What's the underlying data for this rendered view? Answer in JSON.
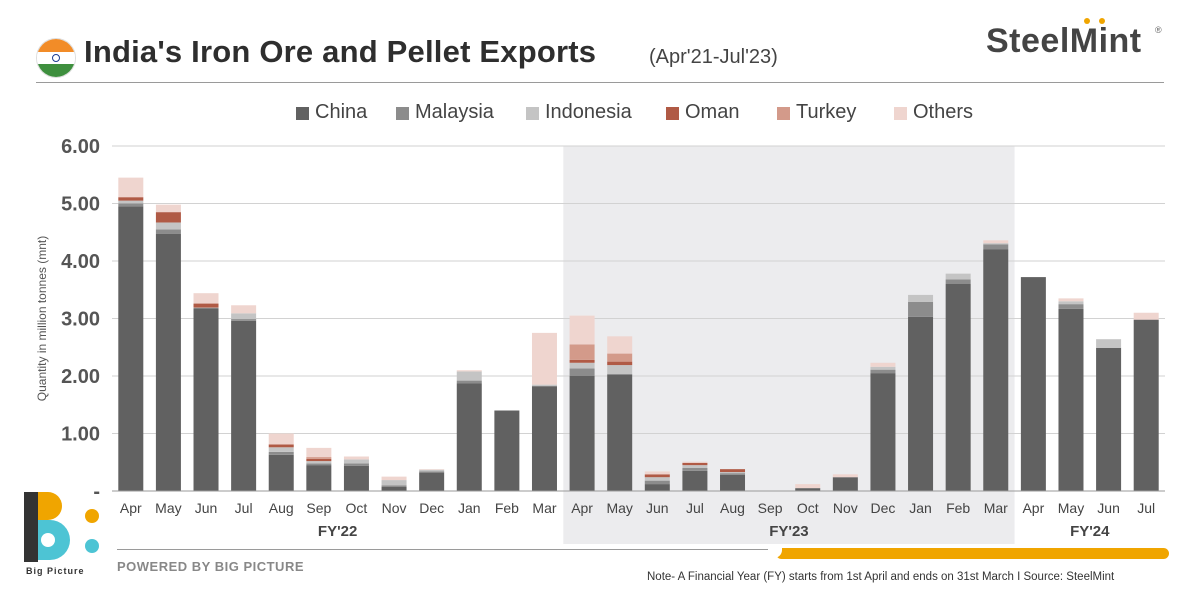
{
  "header": {
    "title": "India's Iron Ore and Pellet Exports",
    "subtitle": "(Apr'21-Jul'23)",
    "brand": "SteelMint",
    "brand_reg": "®"
  },
  "footer": {
    "logo_text": "Big Picture",
    "powered_by": "POWERED BY BIG PICTURE",
    "note": "Note- A Financial Year (FY) starts from 1st April and ends on 31st March  I  Source: SteelMint"
  },
  "colors": {
    "China": "#616161",
    "Malaysia": "#8c8c8c",
    "Indonesia": "#c4c4c4",
    "Oman": "#b05a45",
    "Turkey": "#d39a8a",
    "Others": "#efd5cf",
    "fy_shade": "#ececee",
    "brand_orange": "#f0a500",
    "logo_teal": "#4dc4d4"
  },
  "chart_data": {
    "type": "bar",
    "stacked": true,
    "title": "India's Iron Ore and Pellet Exports (Apr'21-Jul'23)",
    "xlabel": "",
    "ylabel": "Quantity in million tonnes (mnt)",
    "ylim": [
      0,
      6
    ],
    "yticks": [
      0,
      1,
      2,
      3,
      4,
      5,
      6
    ],
    "ytick_labels": [
      "-",
      "1.00",
      "2.00",
      "3.00",
      "4.00",
      "5.00",
      "6.00"
    ],
    "grid": true,
    "legend_position": "top",
    "categories": [
      "Apr",
      "May",
      "Jun",
      "Jul",
      "Aug",
      "Sep",
      "Oct",
      "Nov",
      "Dec",
      "Jan",
      "Feb",
      "Mar",
      "Apr",
      "May",
      "Jun",
      "Jul",
      "Aug",
      "Sep",
      "Oct",
      "Nov",
      "Dec",
      "Jan",
      "Feb",
      "Mar",
      "Apr",
      "May",
      "Jun",
      "Jul"
    ],
    "groups": [
      {
        "label": "FY'22",
        "start": 0,
        "end": 11,
        "shaded": false
      },
      {
        "label": "FY'23",
        "start": 12,
        "end": 23,
        "shaded": true
      },
      {
        "label": "FY'24",
        "start": 24,
        "end": 27,
        "shaded": false
      }
    ],
    "series": [
      {
        "name": "China",
        "values": [
          4.95,
          4.47,
          3.18,
          2.96,
          0.63,
          0.45,
          0.44,
          0.07,
          0.32,
          1.87,
          1.4,
          1.82,
          2.0,
          2.03,
          0.12,
          0.35,
          0.28,
          0.0,
          0.05,
          0.24,
          2.05,
          3.03,
          3.6,
          4.2,
          3.72,
          3.17,
          2.49,
          2.98
        ]
      },
      {
        "name": "Malaysia",
        "values": [
          0.05,
          0.08,
          0.0,
          0.03,
          0.05,
          0.03,
          0.04,
          0.03,
          0.02,
          0.05,
          0.0,
          0.01,
          0.13,
          0.0,
          0.06,
          0.05,
          0.03,
          0.0,
          0.0,
          0.0,
          0.06,
          0.26,
          0.08,
          0.09,
          0.0,
          0.08,
          0.0,
          0.0
        ]
      },
      {
        "name": "Indonesia",
        "values": [
          0.05,
          0.12,
          0.01,
          0.1,
          0.08,
          0.04,
          0.07,
          0.09,
          0.03,
          0.16,
          0.0,
          0.02,
          0.1,
          0.16,
          0.06,
          0.05,
          0.02,
          0.0,
          0.0,
          0.0,
          0.05,
          0.12,
          0.1,
          0.02,
          0.0,
          0.05,
          0.15,
          0.0
        ]
      },
      {
        "name": "Oman",
        "values": [
          0.06,
          0.18,
          0.07,
          0.0,
          0.05,
          0.04,
          0.0,
          0.0,
          0.0,
          0.0,
          0.0,
          0.0,
          0.05,
          0.06,
          0.05,
          0.04,
          0.05,
          0.0,
          0.0,
          0.0,
          0.0,
          0.0,
          0.0,
          0.0,
          0.0,
          0.0,
          0.0,
          0.0
        ]
      },
      {
        "name": "Turkey",
        "values": [
          0.0,
          0.0,
          0.0,
          0.0,
          0.0,
          0.03,
          0.0,
          0.0,
          0.0,
          0.0,
          0.0,
          0.0,
          0.27,
          0.14,
          0.0,
          0.0,
          0.0,
          0.0,
          0.0,
          0.0,
          0.0,
          0.0,
          0.0,
          0.0,
          0.0,
          0.0,
          0.0,
          0.0
        ]
      },
      {
        "name": "Others",
        "values": [
          0.34,
          0.13,
          0.18,
          0.14,
          0.19,
          0.16,
          0.05,
          0.06,
          0.01,
          0.02,
          0.0,
          0.9,
          0.5,
          0.3,
          0.05,
          0.02,
          0.0,
          0.0,
          0.07,
          0.05,
          0.07,
          0.0,
          0.0,
          0.05,
          0.0,
          0.05,
          0.0,
          0.12
        ]
      }
    ]
  }
}
